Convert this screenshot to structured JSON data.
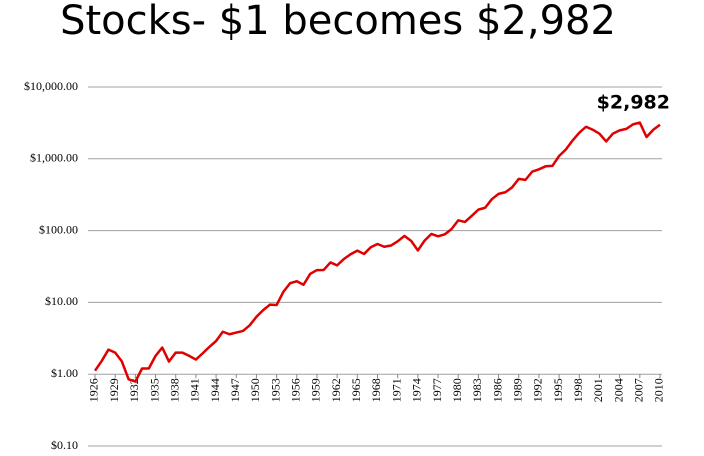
{
  "chart_data": {
    "type": "line",
    "title": "Stocks- $1 becomes $2,982",
    "x": [
      1926,
      1927,
      1928,
      1929,
      1930,
      1931,
      1932,
      1933,
      1934,
      1935,
      1936,
      1937,
      1938,
      1939,
      1940,
      1941,
      1942,
      1943,
      1944,
      1945,
      1946,
      1947,
      1948,
      1949,
      1950,
      1951,
      1952,
      1953,
      1954,
      1955,
      1956,
      1957,
      1958,
      1959,
      1960,
      1961,
      1962,
      1963,
      1964,
      1965,
      1966,
      1967,
      1968,
      1969,
      1970,
      1971,
      1972,
      1973,
      1974,
      1975,
      1976,
      1977,
      1978,
      1979,
      1980,
      1981,
      1982,
      1983,
      1984,
      1985,
      1986,
      1987,
      1988,
      1989,
      1990,
      1991,
      1992,
      1993,
      1994,
      1995,
      1996,
      1997,
      1998,
      1999,
      2000,
      2001,
      2002,
      2003,
      2004,
      2005,
      2006,
      2007,
      2008,
      2009,
      2010
    ],
    "values": [
      1.12,
      1.53,
      2.2,
      2.0,
      1.5,
      0.85,
      0.79,
      1.2,
      1.2,
      1.8,
      2.35,
      1.5,
      2.0,
      2.0,
      1.8,
      1.6,
      1.95,
      2.4,
      2.9,
      3.9,
      3.6,
      3.8,
      4.0,
      4.8,
      6.3,
      7.8,
      9.3,
      9.2,
      14,
      18.5,
      19.7,
      17.6,
      25,
      28.2,
      28.3,
      36,
      32.8,
      40.2,
      46.8,
      52.6,
      47.3,
      58.6,
      65.1,
      59.6,
      62,
      70.9,
      84.3,
      71.9,
      52.9,
      72.5,
      89.8,
      83.3,
      88.7,
      105,
      139,
      132,
      160,
      196,
      208,
      274,
      325,
      342,
      399,
      525,
      509,
      663,
      714,
      786,
      796,
      1095,
      1347,
      1796,
      2309,
      2795,
      2541,
      2239,
      1744,
      2245,
      2489,
      2611,
      3023,
      3190,
      2010,
      2541,
      2982
    ],
    "value_labels": [
      null,
      null,
      null,
      null,
      null,
      null,
      null,
      null,
      null,
      null,
      null,
      null,
      null,
      null,
      null,
      null,
      null,
      null,
      null,
      null,
      null,
      null,
      null,
      null,
      null,
      null,
      null,
      null,
      null,
      null,
      null,
      null,
      null,
      null,
      null,
      null,
      null,
      null,
      null,
      null,
      null,
      null,
      null,
      null,
      null,
      null,
      null,
      null,
      null,
      null,
      null,
      null,
      null,
      null,
      null,
      null,
      null,
      null,
      null,
      null,
      null,
      null,
      null,
      null,
      null,
      null,
      null,
      null,
      null,
      null,
      null,
      null,
      null,
      null,
      null,
      null,
      null,
      null,
      null,
      null,
      null,
      null,
      null,
      null,
      "$2,982"
    ],
    "color": "#e00000",
    "xticks": [
      1926,
      1929,
      1932,
      1935,
      1938,
      1941,
      1944,
      1947,
      1950,
      1953,
      1956,
      1959,
      1962,
      1965,
      1968,
      1971,
      1974,
      1977,
      1980,
      1983,
      1986,
      1989,
      1992,
      1995,
      1998,
      2001,
      2004,
      2007,
      2010
    ],
    "log_scale": true,
    "ylim": [
      0.1,
      10000
    ],
    "yticks": [
      {
        "value": 0.1,
        "label": "$0.10"
      },
      {
        "value": 1,
        "label": "$1.00"
      },
      {
        "value": 10,
        "label": "$10.00"
      },
      {
        "value": 100,
        "label": "$100.00"
      },
      {
        "value": 1000,
        "label": "$1,000.00"
      },
      {
        "value": 10000,
        "label": "$10,000.00"
      }
    ],
    "grid": true
  }
}
